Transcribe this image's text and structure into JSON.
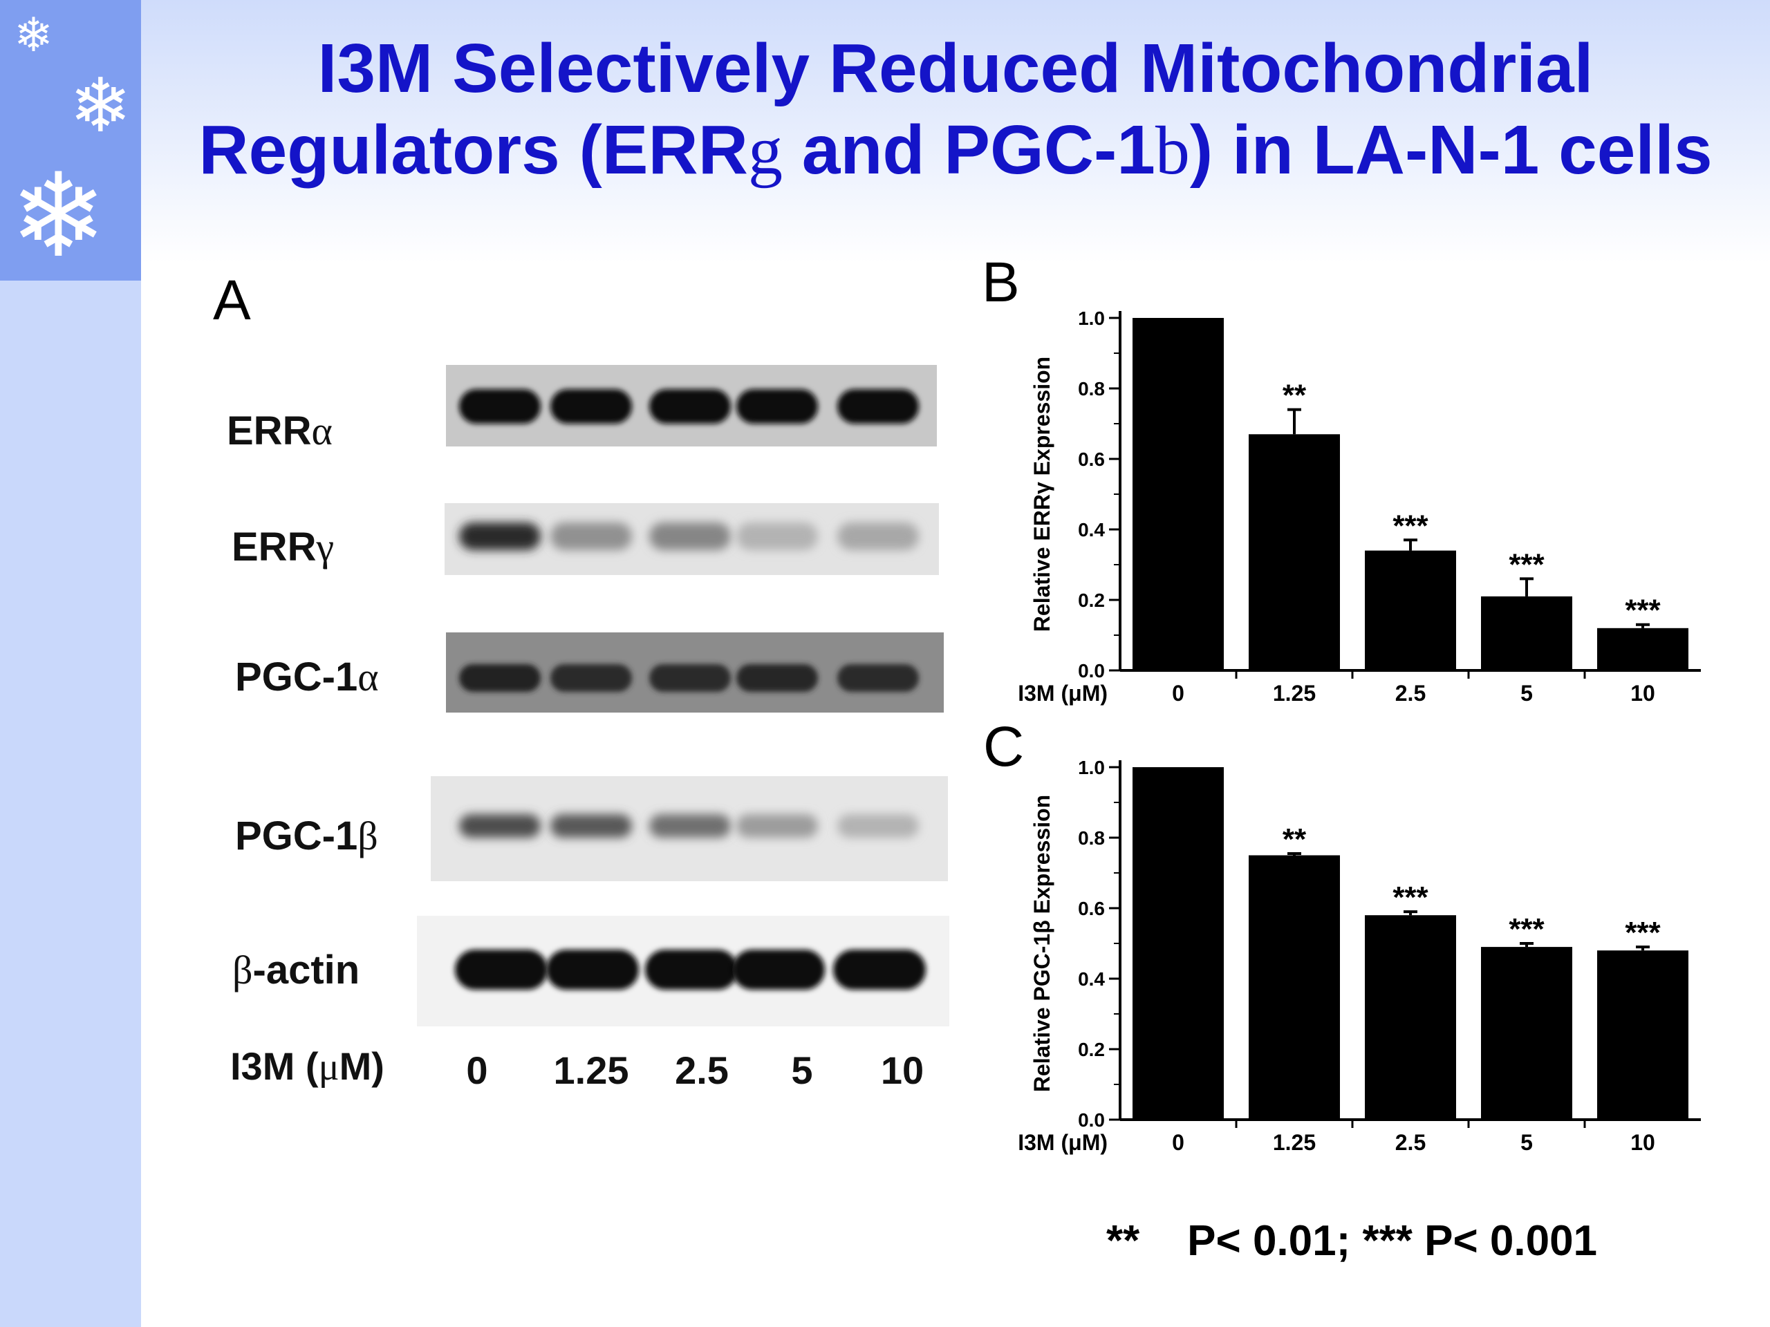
{
  "title": {
    "line1": "I3M Selectively Reduced Mitochondrial",
    "line2_pre": "Regulators (ERR",
    "line2_sym1": "g",
    "line2_mid": " and PGC-1",
    "line2_sym2": "b",
    "line2_post": ") in LA-N-1 cells"
  },
  "decor": {
    "snowflake_icon": "❄"
  },
  "panel_a": {
    "letter": "A",
    "blots": [
      {
        "label": "ERR",
        "sym": "α"
      },
      {
        "label": "ERR",
        "sym": "γ"
      },
      {
        "label": "PGC-1",
        "sym": "α"
      },
      {
        "label": "PGC-1",
        "sym": "β"
      },
      {
        "label": "-actin",
        "sym": "β"
      }
    ],
    "dose_label_pre": "I3M (",
    "dose_label_sym": "μ",
    "dose_label_post": "M)",
    "doses": [
      "0",
      "1.25",
      "2.5",
      "5",
      "10"
    ],
    "band_intensity": [
      [
        1.0,
        1.0,
        1.0,
        1.0,
        1.0
      ],
      [
        0.85,
        0.4,
        0.45,
        0.25,
        0.3
      ],
      [
        0.9,
        0.85,
        0.85,
        0.88,
        0.85
      ],
      [
        0.7,
        0.65,
        0.55,
        0.35,
        0.25
      ],
      [
        1.0,
        1.0,
        1.0,
        1.0,
        1.0
      ]
    ]
  },
  "chart_data": [
    {
      "panel": "B",
      "type": "bar",
      "xlabel": "I3M (μM)",
      "ylabel": "Relative ERRγ Expression",
      "ylim": [
        0,
        1.0
      ],
      "yticks": [
        "0.0",
        "0.2",
        "0.4",
        "0.6",
        "0.8",
        "1.0"
      ],
      "categories": [
        "0",
        "1.25",
        "2.5",
        "5",
        "10"
      ],
      "values": [
        1.0,
        0.67,
        0.34,
        0.21,
        0.12
      ],
      "errors": [
        0,
        0.07,
        0.03,
        0.05,
        0.01
      ],
      "annotations": [
        "",
        "**",
        "***",
        "***",
        "***"
      ]
    },
    {
      "panel": "C",
      "type": "bar",
      "xlabel": "I3M (μM)",
      "ylabel": "Relative PGC-1β Expression",
      "ylim": [
        0,
        1.0
      ],
      "yticks": [
        "0.0",
        "0.2",
        "0.4",
        "0.6",
        "0.8",
        "1.0"
      ],
      "categories": [
        "0",
        "1.25",
        "2.5",
        "5",
        "10"
      ],
      "values": [
        1.0,
        0.75,
        0.58,
        0.49,
        0.48
      ],
      "errors": [
        0,
        0.005,
        0.01,
        0.01,
        0.01
      ],
      "annotations": [
        "",
        "**",
        "***",
        "***",
        "***"
      ]
    }
  ],
  "footnote": "**    P< 0.01; *** P< 0.001"
}
